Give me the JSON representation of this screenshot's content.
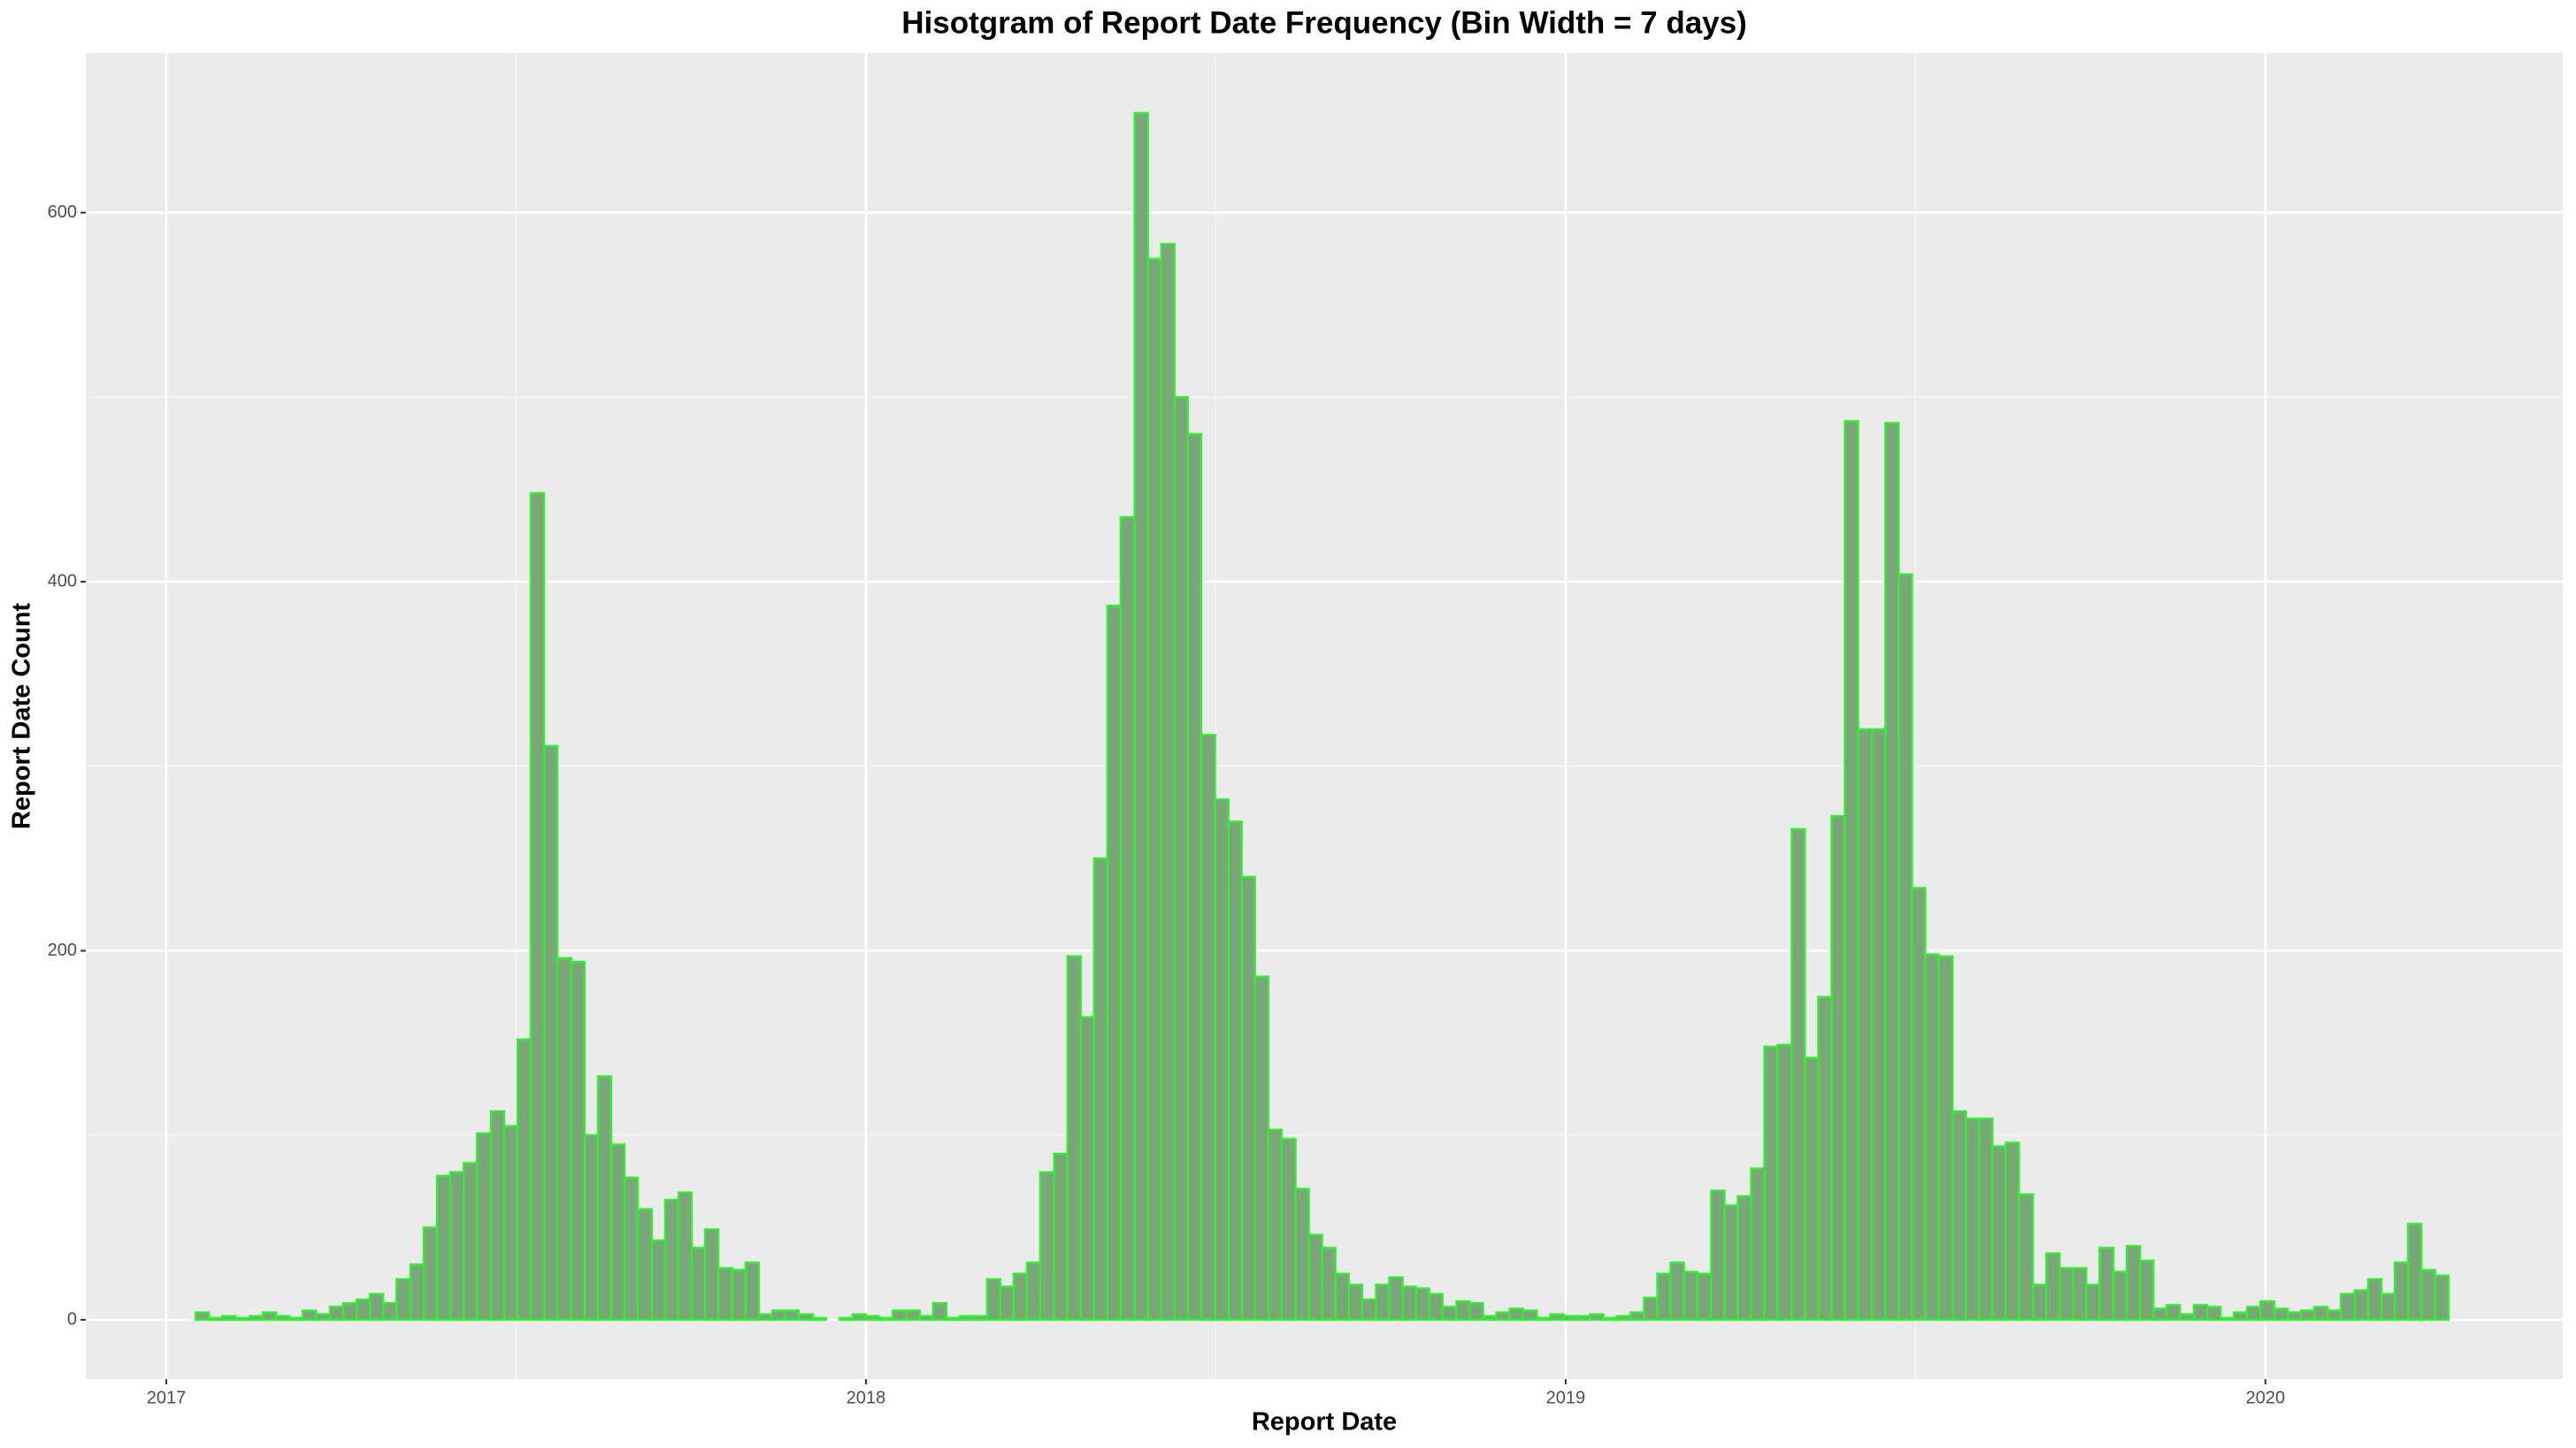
{
  "chart_data": {
    "type": "histogram",
    "title": "Hisotgram of Report Date Frequency (Bin Width = 7 days)",
    "xlabel": "Report Date",
    "ylabel": "Report Date Count",
    "color": "#7aa67a",
    "edgecolor": "#33ee33",
    "grid": true,
    "xlim": [
      2016.885,
      2020.425
    ],
    "ylim": [
      -32.1,
      686.5
    ],
    "xticks": [
      2017,
      2018,
      2019,
      2020
    ],
    "yticks": [
      0,
      200,
      400,
      600
    ],
    "bins": [
      2017.042,
      2017.061,
      2017.08,
      2017.099,
      2017.119,
      2017.138,
      2017.157,
      2017.176,
      2017.195,
      2017.214,
      2017.234,
      2017.253,
      2017.272,
      2017.291,
      2017.31,
      2017.329,
      2017.349,
      2017.368,
      2017.387,
      2017.406,
      2017.425,
      2017.444,
      2017.464,
      2017.483,
      2017.502,
      2017.521,
      2017.54,
      2017.559,
      2017.579,
      2017.598,
      2017.617,
      2017.636,
      2017.655,
      2017.674,
      2017.694,
      2017.713,
      2017.732,
      2017.751,
      2017.77,
      2017.789,
      2017.809,
      2017.828,
      2017.847,
      2017.866,
      2017.885,
      2017.904,
      2017.924,
      2017.943,
      2017.962,
      2017.981,
      2018.0,
      2018.019,
      2018.038,
      2018.058,
      2018.077,
      2018.096,
      2018.115,
      2018.134,
      2018.154,
      2018.173,
      2018.192,
      2018.211,
      2018.23,
      2018.249,
      2018.269,
      2018.288,
      2018.307,
      2018.326,
      2018.345,
      2018.364,
      2018.384,
      2018.403,
      2018.422,
      2018.441,
      2018.46,
      2018.479,
      2018.499,
      2018.518,
      2018.537,
      2018.556,
      2018.575,
      2018.594,
      2018.614,
      2018.633,
      2018.652,
      2018.671,
      2018.69,
      2018.709,
      2018.729,
      2018.748,
      2018.767,
      2018.786,
      2018.805,
      2018.824,
      2018.844,
      2018.863,
      2018.882,
      2018.901,
      2018.92,
      2018.939,
      2018.959,
      2018.978,
      2018.997,
      2019.016,
      2019.035,
      2019.054,
      2019.073,
      2019.093,
      2019.112,
      2019.131,
      2019.15,
      2019.169,
      2019.188,
      2019.208,
      2019.227,
      2019.246,
      2019.265,
      2019.284,
      2019.303,
      2019.323,
      2019.342,
      2019.361,
      2019.38,
      2019.399,
      2019.418,
      2019.438,
      2019.457,
      2019.476,
      2019.495,
      2019.514,
      2019.533,
      2019.553,
      2019.572,
      2019.591,
      2019.61,
      2019.629,
      2019.648,
      2019.668,
      2019.687,
      2019.706,
      2019.725,
      2019.744,
      2019.763,
      2019.783,
      2019.802,
      2019.821,
      2019.84,
      2019.859,
      2019.878,
      2019.898,
      2019.917,
      2019.936,
      2019.955,
      2019.974,
      2019.993,
      2020.013,
      2020.032,
      2020.051,
      2020.07,
      2020.089,
      2020.108,
      2020.128,
      2020.147,
      2020.166,
      2020.185,
      2020.204,
      2020.223,
      2020.243,
      2020.262
    ],
    "values": [
      4,
      1,
      2,
      1,
      2,
      4,
      2,
      1,
      5,
      3,
      7,
      9,
      11,
      14,
      9,
      22,
      30,
      50,
      78,
      80,
      85,
      101,
      113,
      105,
      152,
      448,
      311,
      196,
      194,
      100,
      132,
      95,
      77,
      60,
      43,
      65,
      69,
      39,
      49,
      28,
      27,
      31,
      3,
      5,
      5,
      3,
      1,
      0,
      1,
      3,
      2,
      1,
      5,
      5,
      2,
      9,
      1,
      2,
      2,
      22,
      18,
      25,
      31,
      80,
      90,
      197,
      164,
      250,
      387,
      435,
      654,
      575,
      583,
      500,
      480,
      317,
      282,
      270,
      240,
      186,
      103,
      98,
      71,
      46,
      39,
      25,
      19,
      11,
      19,
      23,
      18,
      17,
      14,
      7,
      10,
      9,
      2,
      4,
      6,
      5,
      1,
      3,
      2,
      2,
      3,
      1,
      2,
      4,
      12,
      25,
      31,
      26,
      25,
      70,
      62,
      67,
      82,
      148,
      149,
      266,
      142,
      175,
      273,
      487,
      320,
      320,
      486,
      404,
      234,
      198,
      197,
      113,
      109,
      109,
      94,
      96,
      68,
      19,
      36,
      28,
      28,
      19,
      39,
      26,
      40,
      32,
      6,
      8,
      3,
      8,
      7,
      1,
      4,
      7,
      10,
      6,
      4,
      5,
      7,
      5,
      14,
      16,
      22,
      14,
      31,
      52,
      27,
      24
    ]
  }
}
